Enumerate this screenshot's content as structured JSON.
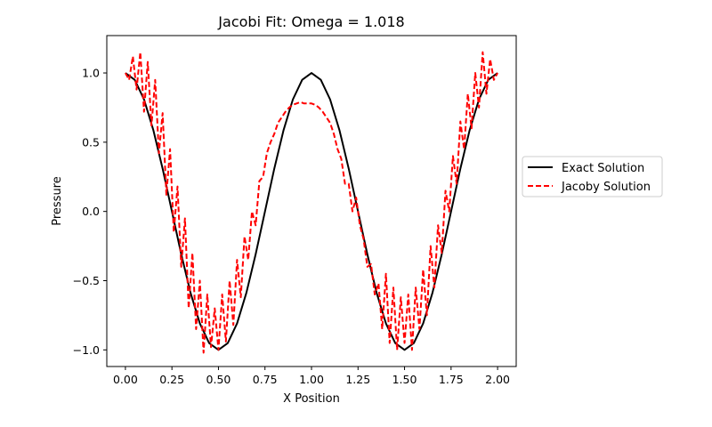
{
  "chart_data": {
    "type": "line",
    "title": "Jacobi Fit: Omega = 1.018",
    "xlabel": "X Position",
    "ylabel": "Pressure",
    "xlim": [
      -0.1,
      2.1
    ],
    "ylim": [
      -1.12,
      1.27
    ],
    "x_ticks": [
      0.0,
      0.25,
      0.5,
      0.75,
      1.0,
      1.25,
      1.5,
      1.75,
      2.0
    ],
    "x_tick_labels": [
      "0.00",
      "0.25",
      "0.50",
      "0.75",
      "1.00",
      "1.25",
      "1.50",
      "1.75",
      "2.00"
    ],
    "y_ticks": [
      -1.0,
      -0.5,
      0.0,
      0.5,
      1.0
    ],
    "y_tick_labels": [
      "−1.0",
      "−0.5",
      "0.0",
      "0.5",
      "1.0"
    ],
    "grid": false,
    "legend_position": "right, outside plot",
    "series": [
      {
        "name": "Exact Solution",
        "color": "#000000",
        "style": "solid",
        "x": [
          0.0,
          0.05,
          0.1,
          0.15,
          0.2,
          0.25,
          0.3,
          0.35,
          0.4,
          0.45,
          0.5,
          0.55,
          0.6,
          0.65,
          0.7,
          0.75,
          0.8,
          0.85,
          0.9,
          0.95,
          1.0,
          1.05,
          1.1,
          1.15,
          1.2,
          1.25,
          1.3,
          1.35,
          1.4,
          1.45,
          1.5,
          1.55,
          1.6,
          1.65,
          1.7,
          1.75,
          1.8,
          1.85,
          1.9,
          1.95,
          2.0
        ],
        "y": [
          1.0,
          0.951,
          0.809,
          0.588,
          0.309,
          0.0,
          -0.309,
          -0.588,
          -0.809,
          -0.951,
          -1.0,
          -0.951,
          -0.809,
          -0.588,
          -0.309,
          0.0,
          0.309,
          0.588,
          0.809,
          0.951,
          1.0,
          0.951,
          0.809,
          0.588,
          0.309,
          0.0,
          -0.309,
          -0.588,
          -0.809,
          -0.951,
          -1.0,
          -0.951,
          -0.809,
          -0.588,
          -0.309,
          0.0,
          0.309,
          0.588,
          0.809,
          0.951,
          1.0
        ]
      },
      {
        "name": "Jacoby Solution",
        "color": "#ff0000",
        "style": "dashed",
        "x": [
          0.0,
          0.02,
          0.04,
          0.06,
          0.08,
          0.1,
          0.12,
          0.14,
          0.16,
          0.18,
          0.2,
          0.22,
          0.24,
          0.26,
          0.28,
          0.3,
          0.32,
          0.34,
          0.36,
          0.38,
          0.4,
          0.42,
          0.44,
          0.46,
          0.48,
          0.5,
          0.52,
          0.54,
          0.56,
          0.58,
          0.6,
          0.62,
          0.64,
          0.66,
          0.68,
          0.7,
          0.72,
          0.74,
          0.76,
          0.78,
          0.8,
          0.82,
          0.84,
          0.86,
          0.88,
          0.9,
          0.92,
          0.94,
          0.96,
          0.98,
          1.0,
          1.02,
          1.04,
          1.06,
          1.08,
          1.1,
          1.12,
          1.14,
          1.16,
          1.18,
          1.2,
          1.22,
          1.24,
          1.26,
          1.28,
          1.3,
          1.32,
          1.34,
          1.36,
          1.38,
          1.4,
          1.42,
          1.44,
          1.46,
          1.48,
          1.5,
          1.52,
          1.54,
          1.56,
          1.58,
          1.6,
          1.62,
          1.64,
          1.66,
          1.68,
          1.7,
          1.72,
          1.74,
          1.76,
          1.78,
          1.8,
          1.82,
          1.84,
          1.86,
          1.88,
          1.9,
          1.92,
          1.94,
          1.96,
          1.98,
          2.0
        ],
        "y": [
          1.0,
          0.95,
          1.12,
          0.88,
          1.15,
          0.72,
          1.08,
          0.62,
          0.95,
          0.42,
          0.71,
          0.12,
          0.45,
          -0.15,
          0.18,
          -0.4,
          -0.05,
          -0.7,
          -0.3,
          -0.85,
          -0.5,
          -1.02,
          -0.6,
          -0.98,
          -0.7,
          -1.0,
          -0.6,
          -0.94,
          -0.5,
          -0.82,
          -0.35,
          -0.62,
          -0.18,
          -0.35,
          0.0,
          -0.1,
          0.22,
          0.25,
          0.42,
          0.5,
          0.56,
          0.64,
          0.68,
          0.72,
          0.75,
          0.77,
          0.78,
          0.79,
          0.78,
          0.78,
          0.78,
          0.77,
          0.75,
          0.72,
          0.68,
          0.64,
          0.56,
          0.45,
          0.38,
          0.2,
          0.2,
          0.0,
          0.1,
          -0.1,
          -0.2,
          -0.4,
          -0.38,
          -0.6,
          -0.52,
          -0.85,
          -0.45,
          -0.95,
          -0.55,
          -1.0,
          -0.62,
          -0.95,
          -0.6,
          -1.0,
          -0.55,
          -0.85,
          -0.42,
          -0.75,
          -0.25,
          -0.55,
          -0.1,
          -0.3,
          0.15,
          0.0,
          0.4,
          0.2,
          0.65,
          0.45,
          0.85,
          0.6,
          1.0,
          0.75,
          1.15,
          0.85,
          1.1,
          0.95,
          1.0
        ]
      }
    ]
  }
}
